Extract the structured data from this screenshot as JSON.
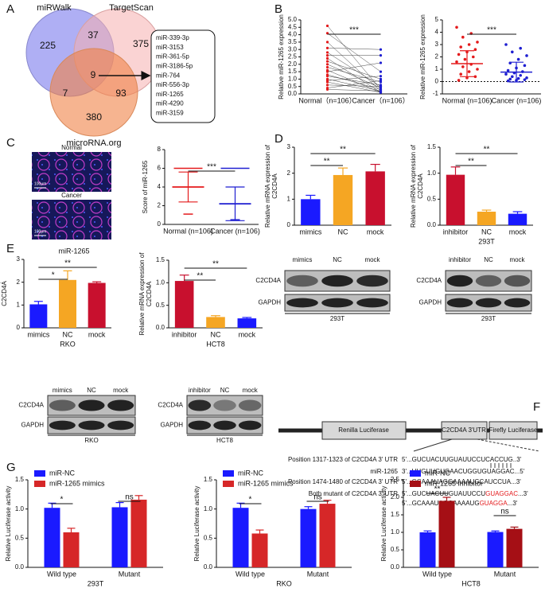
{
  "panel_labels": [
    "A",
    "B",
    "C",
    "D",
    "E",
    "F",
    "G"
  ],
  "venn": {
    "sets": [
      "miRWalk",
      "TargetScan",
      "microRNA.org"
    ],
    "regions": [
      225,
      37,
      375,
      7,
      9,
      93,
      380
    ],
    "overlap_list": [
      "miR-339-3p",
      "miR-3153",
      "miR-361-5p",
      "miR-3186-5p",
      "miR-764",
      "miR-556-3p",
      "miR-1265",
      "miR-4290",
      "miR-3159"
    ]
  },
  "images": {
    "labels": [
      "Normal",
      "Cancer"
    ],
    "scale_bar": "100μm",
    "caption": "miR-1265"
  },
  "blots": [
    {
      "lanes": [
        "mimics",
        "NC",
        "mock"
      ],
      "rows": [
        "C2CD4A",
        "GAPDH"
      ],
      "cell_line": "293T"
    },
    {
      "lanes": [
        "inhibitor",
        "NC",
        "mock"
      ],
      "rows": [
        "C2CD4A",
        "GAPDH"
      ],
      "cell_line": "293T"
    },
    {
      "lanes": [
        "mimics",
        "NC",
        "mock"
      ],
      "rows": [
        "C2CD4A",
        "GAPDH"
      ],
      "cell_line": "RKO"
    },
    {
      "lanes": [
        "inhibitor",
        "NC",
        "mock"
      ],
      "rows": [
        "C2CD4A",
        "GAPDH"
      ],
      "cell_line": "HCT8"
    }
  ],
  "construct": {
    "segments": [
      "Renilla Luciferase",
      "C2CD4A  3'UTR",
      "Firefly Luciferase"
    ],
    "rows": [
      {
        "label": "Position 1317-1323 of C2CD4A 3' UTR",
        "sequence": "5'...GUCUACUUGUAUUCCUCACCUG..3'"
      },
      {
        "label": "miR-1265",
        "sequence": "3'...UUGUUGUGAACUGGUGUAGGAC...5'"
      },
      {
        "label": "Position 1474-1480 of C2CD4A 3' UTR",
        "sequence": "5'...GCAAAUAGGAAAAUGCAUCCUA...3'"
      }
    ],
    "mutant_label": "Both mutant of C2CD4A 3' UTR",
    "mutant_sequences": [
      [
        "5'...GUCUACUUGUAUUCCU",
        "GUAGGAC",
        "...3'"
      ],
      [
        "5'...GCAAAUAGGAAAAUG",
        "GUAGGA",
        "...3'"
      ]
    ]
  },
  "chart_data": [
    {
      "type": "paired",
      "ylabel": "Relative miR-1265 expression",
      "categories": [
        "Normal（n=106）",
        "Cancer（n=106）"
      ],
      "groups": [
        {
          "color": "#e41a1c",
          "values": [
            4.6,
            4.1,
            3.5,
            3.1,
            2.8,
            2.6,
            2.4,
            2.2,
            2.0,
            1.8,
            1.6,
            1.5,
            1.3,
            1.2,
            1.0,
            0.9,
            0.8,
            0.6,
            0.4,
            0.3
          ]
        },
        {
          "color": "#1f1fd1",
          "values": [
            0.3,
            1.5,
            0.2,
            3.0,
            0.5,
            2.6,
            0.1,
            1.0,
            0.4,
            0.8,
            0.1,
            2.1,
            0.3,
            0.6,
            0.2,
            1.2,
            0.1,
            0.5,
            0.9,
            0.2
          ]
        }
      ],
      "ylim": [
        0,
        5
      ],
      "yticks": [
        {
          "value": 0,
          "label": "0.0"
        },
        {
          "value": 0.5,
          "label": "0.5"
        },
        {
          "value": 1,
          "label": "1.0"
        },
        {
          "value": 1.5,
          "label": "1.5"
        },
        {
          "value": 2,
          "label": "2.0"
        },
        {
          "value": 2.5,
          "label": "2.5"
        },
        {
          "value": 3,
          "label": "3.0"
        },
        {
          "value": 3.5,
          "label": "3.5"
        },
        {
          "value": 4,
          "label": "4.0"
        },
        {
          "value": 4.5,
          "label": "4.5"
        },
        {
          "value": 5,
          "label": "5.0"
        }
      ],
      "significance": [
        "***"
      ]
    },
    {
      "type": "dotplot",
      "ylabel": "Relative miR-1265 expression",
      "categories": [
        "Normal (n=106)",
        "Cancer (n=106)"
      ],
      "groups": [
        {
          "color": "#e41a1c",
          "values": [
            4.4,
            3.9,
            3.6,
            3.2,
            3.0,
            2.8,
            2.6,
            2.4,
            2.2,
            2.0,
            1.8,
            1.6,
            1.4,
            1.2,
            1.0,
            0.8,
            0.6,
            0.4,
            0.3,
            0.1
          ]
        },
        {
          "color": "#1f1fd1",
          "values": [
            3.0,
            2.7,
            2.4,
            2.1,
            1.8,
            1.5,
            1.3,
            1.1,
            0.9,
            0.8,
            0.7,
            0.6,
            0.5,
            0.4,
            0.3,
            0.25,
            0.2,
            0.15,
            0.1,
            0.05
          ]
        }
      ],
      "means": [
        1.45,
        0.77
      ],
      "sds": [
        1.05,
        0.8
      ],
      "reference_line": 0,
      "ylim": [
        -1,
        5
      ],
      "yticks": [
        -1,
        0,
        1,
        2,
        3,
        4,
        5
      ],
      "significance": [
        "***"
      ]
    },
    {
      "type": "meansd",
      "ylabel": "Score of miR-1265",
      "categories": [
        "Normal (n=106)",
        "Cancer (n=106)"
      ],
      "colors": [
        "#e41a1c",
        "#1f1fd1"
      ],
      "means": [
        4.0,
        2.2
      ],
      "sds": [
        1.6,
        1.8
      ],
      "maxs": [
        6,
        6
      ],
      "mins": [
        1.1,
        0.5
      ],
      "ylim": [
        0,
        8
      ],
      "yticks": [
        0,
        2,
        4,
        6,
        8
      ],
      "significance": [
        "***"
      ]
    },
    {
      "type": "bar",
      "ylabel": [
        "Relative mRNA expression of",
        "C2CD4A"
      ],
      "categories": [
        "mimics",
        "NC",
        "mock"
      ],
      "values": [
        1.0,
        1.93,
        2.07
      ],
      "errors": [
        0.15,
        0.27,
        0.27
      ],
      "colors": [
        "#1a1aff",
        "#f5a623",
        "#c8102e"
      ],
      "ylim": [
        0,
        3
      ],
      "yticks": [
        0,
        1,
        2,
        3
      ],
      "significance": [
        "**",
        "**"
      ]
    },
    {
      "type": "bar",
      "ylabel": [
        "Relative mRNA expression of",
        "C2CD4A"
      ],
      "xlabel": "293T",
      "categories": [
        "inhibitor",
        "NC",
        "mock"
      ],
      "values": [
        0.97,
        0.26,
        0.22
      ],
      "errors": [
        0.15,
        0.03,
        0.04
      ],
      "colors": [
        "#c8102e",
        "#f5a623",
        "#1a1aff"
      ],
      "ylim": [
        0,
        1.5
      ],
      "yticks": [
        {
          "value": 0,
          "label": "0.0"
        },
        {
          "value": 0.5,
          "label": "0.5"
        },
        {
          "value": 1,
          "label": "1.0"
        },
        {
          "value": 1.5,
          "label": "1.5"
        }
      ],
      "significance": [
        "**",
        "**"
      ]
    },
    {
      "type": "bar",
      "ylabel": [
        "Relative mRNA expression of",
        "C2CD4A"
      ],
      "xlabel": "RKO",
      "categories": [
        "mimics",
        "NC",
        "mock"
      ],
      "values": [
        1.03,
        2.1,
        1.97
      ],
      "errors": [
        0.13,
        0.4,
        0.05
      ],
      "colors": [
        "#1a1aff",
        "#f5a623",
        "#c8102e"
      ],
      "ylim": [
        0,
        3
      ],
      "yticks": [
        0,
        1,
        2,
        3
      ],
      "significance": [
        "*",
        "**"
      ]
    },
    {
      "type": "bar",
      "ylabel": [
        "Relative mRNA expression of",
        "C2CD4A"
      ],
      "xlabel": "HCT8",
      "categories": [
        "inhibitor",
        "NC",
        "mock"
      ],
      "values": [
        1.04,
        0.24,
        0.21
      ],
      "errors": [
        0.13,
        0.03,
        0.02
      ],
      "colors": [
        "#c8102e",
        "#f5a623",
        "#1a1aff"
      ],
      "ylim": [
        0,
        1.5
      ],
      "yticks": [
        {
          "value": 0,
          "label": "0.0"
        },
        {
          "value": 0.5,
          "label": "0.5"
        },
        {
          "value": 1,
          "label": "1.0"
        },
        {
          "value": 1.5,
          "label": "1.5"
        }
      ],
      "significance": [
        "**",
        "**"
      ]
    },
    {
      "type": "groupedbar",
      "ylabel": "Relative Luciferase activity",
      "xlabel": "293T",
      "legend": "upper left",
      "categories": [
        "Wild type",
        "Mutant"
      ],
      "series": [
        {
          "name": "miR-NC",
          "color": "#1a1aff",
          "values": [
            1.02,
            1.03
          ],
          "errors": [
            0.08,
            0.08
          ]
        },
        {
          "name": "miR-1265 mimics",
          "color": "#d62728",
          "values": [
            0.6,
            1.16
          ],
          "errors": [
            0.07,
            0.07
          ]
        }
      ],
      "ylim": [
        0,
        1.5
      ],
      "yticks": [
        {
          "value": 0,
          "label": "0.0"
        },
        {
          "value": 0.5,
          "label": "0.5"
        },
        {
          "value": 1,
          "label": "1.0"
        },
        {
          "value": 1.5,
          "label": "1.5"
        }
      ],
      "significance": [
        "*",
        "ns"
      ]
    },
    {
      "type": "groupedbar",
      "ylabel": "Relative Luciferase activity",
      "xlabel": "RKO",
      "legend": "upper left",
      "categories": [
        "Wild type",
        "Mutant"
      ],
      "series": [
        {
          "name": "miR-NC",
          "color": "#1a1aff",
          "values": [
            1.02,
            1.0
          ],
          "errors": [
            0.08,
            0.04
          ]
        },
        {
          "name": "miR-1265 mimics",
          "color": "#d62728",
          "values": [
            0.58,
            1.09
          ],
          "errors": [
            0.06,
            0.06
          ]
        }
      ],
      "ylim": [
        0,
        1.5
      ],
      "yticks": [
        {
          "value": 0,
          "label": "0.0"
        },
        {
          "value": 0.5,
          "label": "0.5"
        },
        {
          "value": 1,
          "label": "1.0"
        },
        {
          "value": 1.5,
          "label": "1.5"
        }
      ],
      "significance": [
        "*",
        "ns"
      ]
    },
    {
      "type": "groupedbar",
      "ylabel": "Relative Luciferase activity",
      "xlabel": "HCT8",
      "legend": "upper left",
      "categories": [
        "Wild type",
        "Mutant"
      ],
      "series": [
        {
          "name": "miR-NC",
          "color": "#1a1aff",
          "values": [
            1.0,
            1.01
          ],
          "errors": [
            0.04,
            0.03
          ]
        },
        {
          "name": "miR-1265 inhibitor",
          "color": "#a50f15",
          "values": [
            1.9,
            1.1
          ],
          "errors": [
            0.1,
            0.05
          ]
        }
      ],
      "ylim": [
        0,
        2.5
      ],
      "yticks": [
        {
          "value": 0,
          "label": "0.0"
        },
        {
          "value": 0.5,
          "label": "0.5"
        },
        {
          "value": 1,
          "label": "1.0"
        },
        {
          "value": 1.5,
          "label": "1.5"
        },
        {
          "value": 2,
          "label": "2.0"
        },
        {
          "value": 2.5,
          "label": "2.5"
        }
      ],
      "significance": [
        "**",
        "ns"
      ]
    }
  ]
}
